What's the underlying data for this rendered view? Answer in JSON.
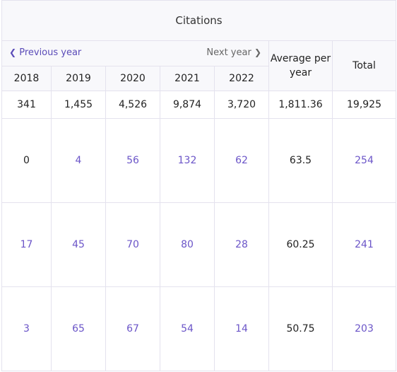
{
  "header": {
    "title": "Citations"
  },
  "nav": {
    "previous_label": "Previous year",
    "next_label": "Next year"
  },
  "columns": {
    "years": [
      "2018",
      "2019",
      "2020",
      "2021",
      "2022"
    ],
    "average_label": "Average per year",
    "total_label": "Total"
  },
  "totals_row": {
    "values": [
      "341",
      "1,455",
      "4,526",
      "9,874",
      "3,720"
    ],
    "average": "1,811.36",
    "total": "19,925"
  },
  "rows": [
    {
      "values": [
        "0",
        "4",
        "56",
        "132",
        "62"
      ],
      "average": "63.5",
      "total": "254"
    },
    {
      "values": [
        "17",
        "45",
        "70",
        "80",
        "28"
      ],
      "average": "60.25",
      "total": "241"
    },
    {
      "values": [
        "3",
        "65",
        "67",
        "54",
        "14"
      ],
      "average": "50.75",
      "total": "203"
    }
  ],
  "colors": {
    "link": "#6b55c8",
    "header_bg": "#f8f8fb",
    "border": "#e4e2ee"
  },
  "icons": {
    "prev": "chevron-left-icon",
    "next": "chevron-right-icon"
  }
}
